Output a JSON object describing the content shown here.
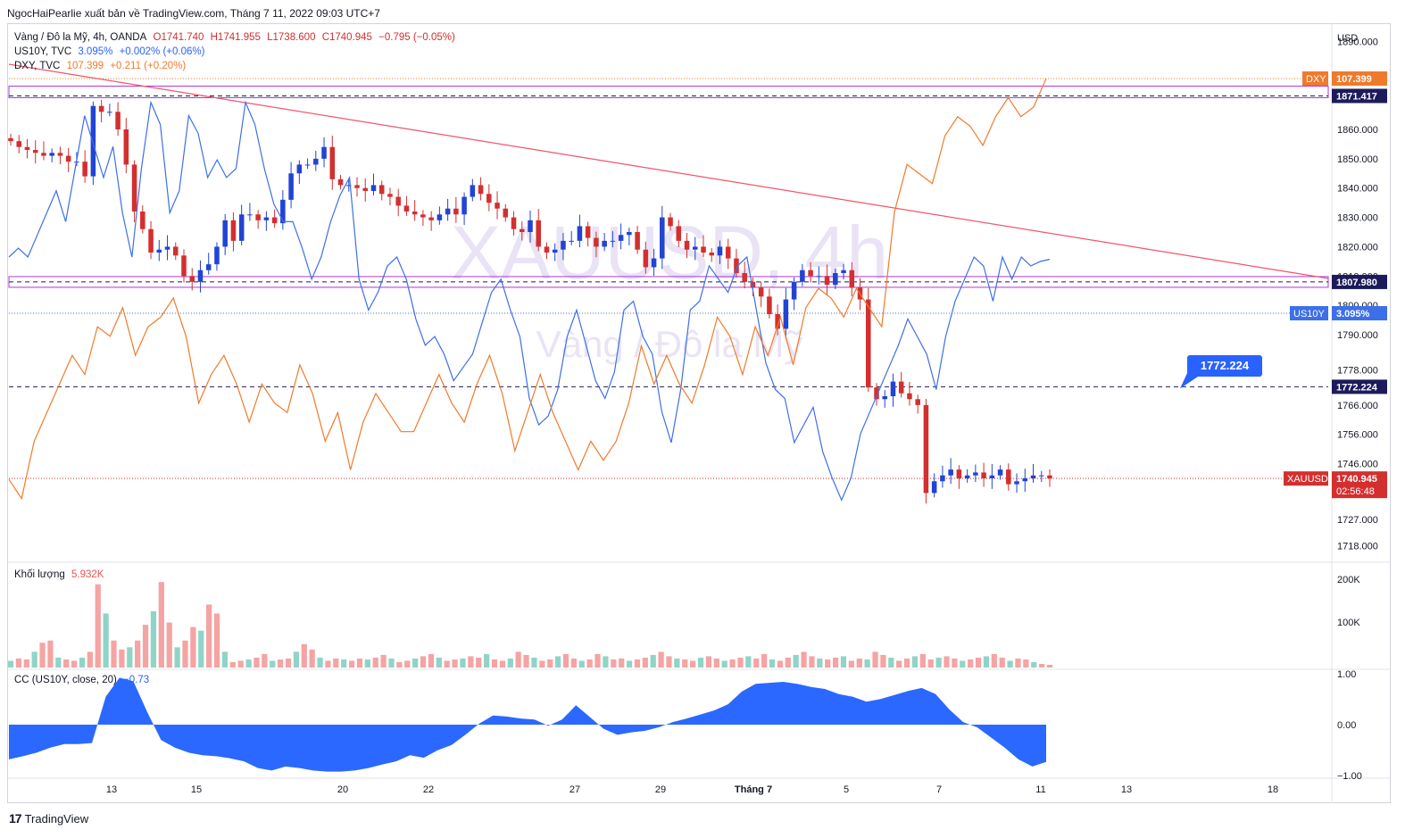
{
  "header": {
    "publisher_line": "NgocHaiPearlie xuất bản về TradingView.com, Tháng 7 11, 2022 09:03 UTC+7"
  },
  "legend": {
    "main": {
      "symbol": "Vàng / Đô la Mỹ, 4h, OANDA",
      "o": "O1741.740",
      "h": "H1741.955",
      "l": "L1738.600",
      "c": "C1740.945",
      "chg": "−0.795 (−0.05%)"
    },
    "us10y": {
      "symbol": "US10Y, TVC",
      "value": "3.095%",
      "chg": "+0.002% (+0.06%)"
    },
    "dxy": {
      "symbol": "DXY, TVC",
      "value": "107.399",
      "chg": "+0.211 (+0.20%)"
    },
    "volume": {
      "label": "Khối lượng",
      "value": "5.932K"
    },
    "cc": {
      "label": "CC (US10Y, close, 20)",
      "value": "−0.73"
    }
  },
  "watermark": {
    "symbol": "XAUUSD, 4h",
    "name": "Vàng / Đô la Mỹ"
  },
  "price_axis": {
    "currency": "USD",
    "ticks": [
      "1890.000",
      "1860.000",
      "1850.000",
      "1840.000",
      "1830.000",
      "1820.000",
      "1810.000",
      "1800.000",
      "1790.000",
      "1778.000",
      "1766.000",
      "1756.000",
      "1746.000",
      "1727.000",
      "1718.000"
    ],
    "volume_ticks": [
      "200K",
      "100K"
    ],
    "cc_ticks": [
      "1.00",
      "0.00",
      "−1.00"
    ]
  },
  "price_tags": {
    "dxy_name": "DXY",
    "dxy_value": "107.399",
    "level_high": "1871.417",
    "level_mid": "1807.980",
    "us10y_name": "US10Y",
    "us10y_value": "3.095%",
    "level_low": "1772.224",
    "xau_name": "XAUUSD",
    "xau_value": "1740.945",
    "countdown": "02:56:48"
  },
  "callout": {
    "text": "1772.224"
  },
  "time_axis": {
    "labels": [
      "13",
      "15",
      "20",
      "22",
      "27",
      "29",
      "Tháng 7",
      "5",
      "7",
      "11",
      "13",
      "18"
    ]
  },
  "footer": {
    "brand": "TradingView"
  },
  "colors": {
    "up": "#2144d3",
    "down": "#d32f2f",
    "us10y": "#3d6fe8",
    "dxy": "#f07a2b",
    "trendline": "#f2546b",
    "purple": "#b136d6",
    "navy": "#1d1a5c",
    "callout": "#2962ff",
    "vol_up": "#8fd4c7",
    "vol_down": "#f5a3a3",
    "cc": "#2b68ff"
  },
  "chart_data": [
    {
      "type": "candlestick",
      "title": "Vàng / Đô la Mỹ, 4h, OANDA",
      "ylabel": "USD",
      "ylim": [
        1713,
        1895
      ],
      "x_labels": [
        "13",
        "15",
        "20",
        "22",
        "27",
        "29",
        "Tháng 7",
        "5",
        "7",
        "11",
        "13",
        "18"
      ],
      "series": [
        {
          "name": "XAUUSD",
          "values_close": [
            1856,
            1854,
            1853,
            1852,
            1851,
            1852,
            1851,
            1849,
            1849,
            1844,
            1868,
            1866,
            1866,
            1860,
            1848,
            1832,
            1826,
            1818,
            1819,
            1820,
            1817,
            1810,
            1808,
            1812,
            1814,
            1820,
            1829,
            1822,
            1831,
            1831,
            1829,
            1830,
            1828,
            1836,
            1845,
            1848,
            1848,
            1850,
            1854,
            1843,
            1841,
            1841,
            1840,
            1839,
            1841,
            1838,
            1837,
            1834,
            1832,
            1831,
            1830,
            1829,
            1831,
            1833,
            1831,
            1837,
            1841,
            1838,
            1835,
            1833,
            1830,
            1826,
            1825,
            1829,
            1820,
            1818,
            1819,
            1822,
            1822,
            1827,
            1823,
            1820,
            1822,
            1822,
            1824,
            1825,
            1819,
            1813,
            1816,
            1830,
            1827,
            1822,
            1819,
            1820,
            1818,
            1817,
            1820,
            1816,
            1811,
            1808,
            1806,
            1803,
            1797,
            1792,
            1802,
            1808,
            1812,
            1810,
            1810,
            1807,
            1811,
            1812,
            1806,
            1802,
            1772,
            1768,
            1769,
            1774,
            1770,
            1768,
            1766,
            1736,
            1740,
            1742,
            1744,
            1741,
            1742,
            1743,
            1741,
            1742,
            1744,
            1739,
            1740,
            1741,
            1742,
            1742,
            1741
          ]
        },
        {
          "name": "US10Y",
          "values": [
            3.1,
            3.12,
            3.1,
            3.15,
            3.2,
            3.25,
            3.18,
            3.3,
            3.42,
            3.35,
            3.28,
            3.35,
            3.2,
            3.1,
            3.3,
            3.45,
            3.4,
            3.2,
            3.25,
            3.42,
            3.38,
            3.28,
            3.32,
            3.28,
            3.3,
            3.45,
            3.4,
            3.3,
            3.22,
            3.18,
            3.18,
            3.12,
            3.05,
            3.1,
            3.18,
            3.24,
            3.28,
            3.05,
            2.98,
            3.02,
            3.08,
            3.1,
            3.05,
            2.96,
            2.9,
            2.92,
            2.88,
            2.82,
            2.85,
            2.88,
            2.95,
            3.02,
            3.05,
            2.98,
            2.92,
            2.78,
            2.72,
            2.74,
            2.8,
            2.92,
            2.98,
            2.9,
            2.82,
            2.78,
            2.84,
            2.98,
            3.0,
            2.92,
            2.88,
            2.75,
            2.68,
            2.8,
            2.98,
            3.0,
            3.08,
            3.05,
            3.02,
            3.08,
            3.1,
            2.98,
            2.86,
            2.8,
            2.78,
            2.68,
            2.72,
            2.76,
            2.66,
            2.6,
            2.55,
            2.6,
            2.7,
            2.75,
            2.8,
            2.85,
            2.9,
            2.96,
            2.92,
            2.88,
            2.8,
            2.92,
            3.0,
            3.05,
            3.1,
            3.08,
            3.0,
            3.1,
            3.05,
            3.1,
            3.08,
            3.09,
            3.095
          ]
        },
        {
          "name": "DXY",
          "values": [
            103.2,
            103.0,
            103.6,
            103.9,
            104.2,
            104.5,
            104.3,
            104.8,
            104.7,
            105.0,
            104.5,
            104.8,
            104.9,
            105.1,
            104.7,
            104.0,
            104.3,
            104.5,
            104.2,
            103.8,
            104.2,
            104.0,
            103.9,
            104.4,
            104.1,
            103.6,
            103.9,
            103.3,
            103.8,
            104.1,
            103.9,
            103.7,
            103.7,
            104.0,
            104.3,
            104.0,
            103.8,
            104.2,
            104.5,
            104.1,
            103.5,
            103.9,
            104.3,
            103.9,
            103.6,
            103.3,
            103.6,
            103.4,
            103.6,
            104.0,
            104.6,
            104.2,
            104.5,
            104.2,
            104.0,
            104.4,
            104.9,
            104.7,
            104.3,
            104.8,
            104.5,
            104.9,
            104.4,
            105.0,
            105.2,
            105.1,
            104.9,
            105.2,
            105.0,
            104.8,
            106.0,
            106.5,
            106.4,
            106.3,
            106.8,
            107.0,
            106.9,
            106.7,
            107.0,
            107.2,
            107.0,
            107.1,
            107.399
          ]
        }
      ]
    },
    {
      "type": "bar",
      "title": "Khối lượng",
      "ylim": [
        0,
        230000
      ],
      "series": [
        {
          "name": "Khối lượng",
          "values": [
            15,
            20,
            18,
            35,
            55,
            60,
            22,
            18,
            15,
            22,
            35,
            185,
            120,
            60,
            40,
            45,
            60,
            95,
            125,
            190,
            100,
            45,
            60,
            90,
            82,
            140,
            120,
            35,
            12,
            15,
            18,
            22,
            30,
            15,
            18,
            20,
            35,
            52,
            40,
            22,
            15,
            20,
            18,
            15,
            20,
            18,
            22,
            28,
            20,
            12,
            15,
            20,
            25,
            30,
            22,
            15,
            18,
            20,
            25,
            22,
            30,
            18,
            15,
            20,
            35,
            28,
            22,
            15,
            18,
            25,
            30,
            20,
            15,
            18,
            30,
            25,
            18,
            20,
            15,
            18,
            22,
            28,
            35,
            25,
            20,
            18,
            15,
            22,
            25,
            20,
            15,
            18,
            22,
            25,
            20,
            30,
            18,
            15,
            22,
            28,
            35,
            25,
            20,
            18,
            22,
            25,
            15,
            20,
            18,
            35,
            28,
            22,
            15,
            20,
            25,
            30,
            18,
            22,
            25,
            20,
            15,
            18,
            22,
            25,
            30,
            22,
            15,
            20,
            18,
            12,
            8,
            6
          ]
        }
      ]
    },
    {
      "type": "area",
      "title": "CC (US10Y, close, 20)",
      "ylim": [
        -1.05,
        1.05
      ],
      "series": [
        {
          "name": "CC",
          "values": [
            -0.68,
            -0.62,
            -0.55,
            -0.45,
            -0.38,
            -0.38,
            -0.36,
            0.55,
            0.92,
            0.85,
            0.25,
            -0.3,
            -0.45,
            -0.55,
            -0.6,
            -0.62,
            -0.66,
            -0.72,
            -0.85,
            -0.9,
            -0.82,
            -0.85,
            -0.9,
            -0.92,
            -0.92,
            -0.9,
            -0.85,
            -0.78,
            -0.72,
            -0.6,
            -0.65,
            -0.5,
            -0.4,
            -0.2,
            0.02,
            0.18,
            0.16,
            0.12,
            0.1,
            -0.02,
            0.1,
            0.38,
            0.15,
            -0.08,
            -0.2,
            -0.15,
            -0.12,
            -0.05,
            0.05,
            0.12,
            0.2,
            0.28,
            0.4,
            0.65,
            0.8,
            0.82,
            0.84,
            0.8,
            0.74,
            0.7,
            0.6,
            0.55,
            0.45,
            0.5,
            0.58,
            0.66,
            0.72,
            0.6,
            0.3,
            0.05,
            -0.05,
            -0.25,
            -0.45,
            -0.68,
            -0.82,
            -0.73
          ]
        }
      ]
    }
  ]
}
